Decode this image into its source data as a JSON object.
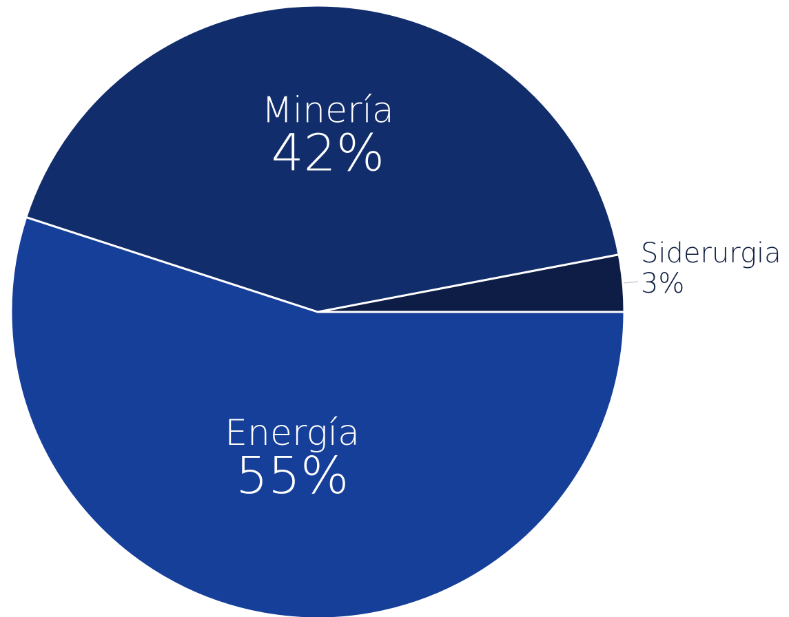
{
  "chart_data": {
    "type": "pie",
    "title": "",
    "slices": [
      {
        "label": "Siderurgia",
        "value": 3,
        "value_label": "3%",
        "color": "#0d1d45"
      },
      {
        "label": "Minería",
        "value": 42,
        "value_label": "42%",
        "color": "#112d6b"
      },
      {
        "label": "Energía",
        "value": 55,
        "value_label": "55%",
        "color": "#163f9a"
      }
    ],
    "label_color_inside": "#ffffff",
    "label_color_outside": "#0f1f3f",
    "slice_separator_color": "#ffffff"
  }
}
